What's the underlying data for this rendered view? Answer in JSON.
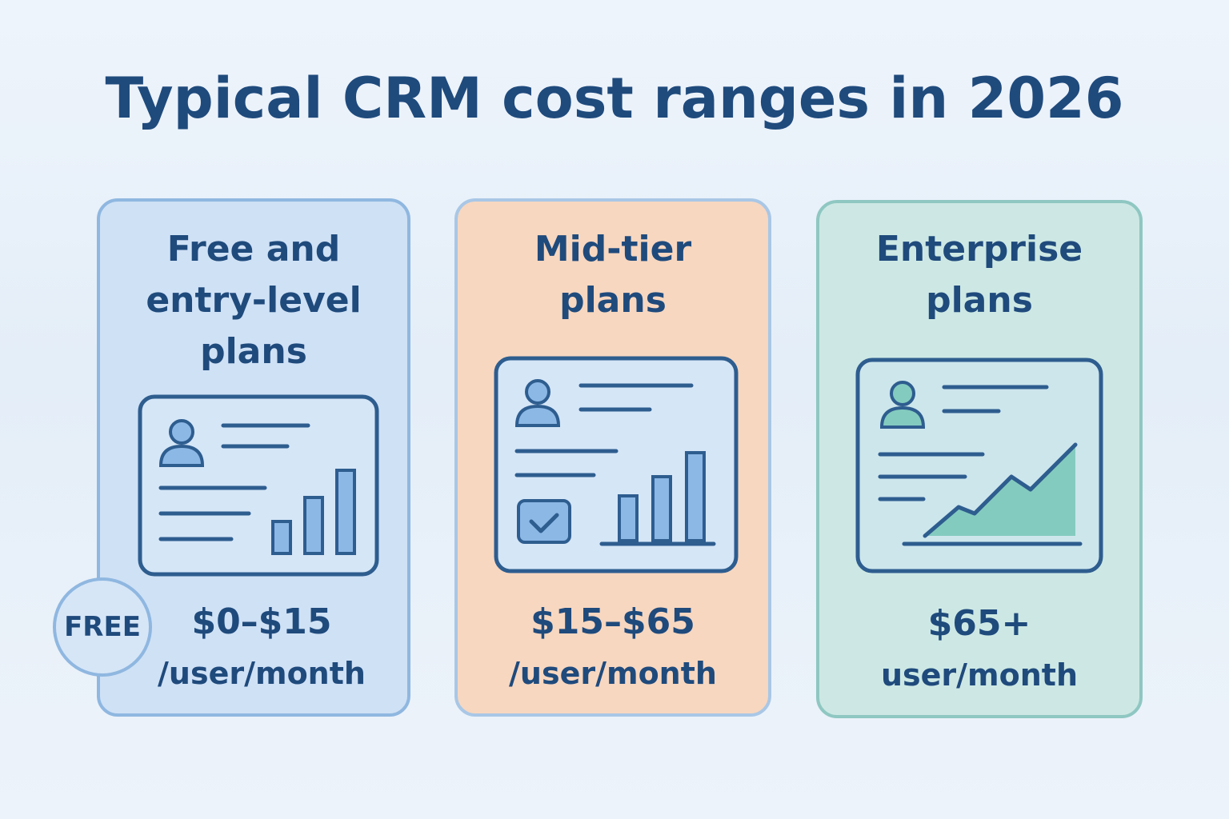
{
  "title": "Typical CRM cost ranges in 2026",
  "tiers": [
    {
      "heading": [
        "Free and",
        "entry-level",
        "plans"
      ],
      "price": "$0–$15",
      "unit": "/user/month",
      "illustration": "dashboard-bar-chart-icon"
    },
    {
      "heading": [
        "Mid-tier",
        "plans"
      ],
      "price": "$15–$65",
      "unit": "/user/month",
      "illustration": "dashboard-checkbox-bar-chart-icon"
    },
    {
      "heading": [
        "Enterprise",
        "plans"
      ],
      "price": "$65+",
      "unit": "user/month",
      "illustration": "dashboard-area-chart-icon"
    }
  ],
  "badge": {
    "label": "FREE"
  },
  "colors": {
    "text": "#1f4a7c",
    "card_blue": "#cfe1f5",
    "card_orange": "#f7d7c0",
    "card_teal": "#cde8e4",
    "icon_stroke": "#2e5d8f",
    "icon_fill_blue": "#8cb8e6",
    "icon_fill_teal": "#84cbbf"
  }
}
